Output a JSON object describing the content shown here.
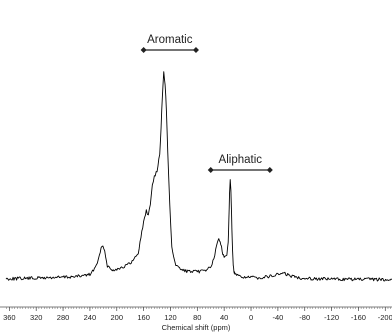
{
  "chart_data": {
    "type": "line",
    "title": "",
    "xlabel": "Chemical shift (ppm)",
    "ylabel": "",
    "x_reversed": true,
    "xlim": [
      365,
      -210
    ],
    "x_ticks": [
      360,
      320,
      280,
      240,
      200,
      160,
      120,
      80,
      40,
      0,
      -40,
      -80,
      -120,
      -160,
      -200
    ],
    "ylim": [
      0,
      1
    ],
    "grid": false,
    "legend": "none",
    "annotations": [
      {
        "text": "Aromatic",
        "x_start": 160,
        "x_end": 82
      },
      {
        "text": "Aliphatic",
        "x_start": 60,
        "x_end": -28
      }
    ],
    "series": [
      {
        "color": "#000000",
        "x": [
          365,
          340,
          300,
          260,
          240,
          232,
          226,
          222,
          218,
          214,
          208,
          200,
          190,
          180,
          174,
          168,
          164,
          160,
          156,
          153,
          150,
          147,
          144,
          140,
          136,
          134,
          132,
          130,
          128,
          126,
          124,
          121,
          118,
          115,
          112,
          108,
          104,
          100,
          90,
          80,
          70,
          62,
          58,
          54,
          50,
          48,
          46,
          44,
          42,
          40,
          38,
          36,
          34,
          33,
          32,
          31,
          30,
          29,
          28,
          27,
          26,
          25,
          24,
          20,
          14,
          8,
          0,
          -10,
          -20,
          -30,
          -40,
          -46,
          -52,
          -60,
          -75,
          -100,
          -140,
          -180,
          -210
        ],
        "values": [
          0.01,
          0.012,
          0.015,
          0.02,
          0.03,
          0.06,
          0.11,
          0.165,
          0.14,
          0.07,
          0.05,
          0.055,
          0.065,
          0.08,
          0.1,
          0.13,
          0.2,
          0.27,
          0.32,
          0.3,
          0.35,
          0.44,
          0.48,
          0.5,
          0.58,
          0.7,
          0.85,
          0.955,
          0.9,
          0.78,
          0.58,
          0.34,
          0.16,
          0.1,
          0.075,
          0.06,
          0.052,
          0.048,
          0.042,
          0.042,
          0.048,
          0.06,
          0.075,
          0.12,
          0.175,
          0.19,
          0.18,
          0.16,
          0.12,
          0.11,
          0.115,
          0.125,
          0.18,
          0.28,
          0.4,
          0.47,
          0.42,
          0.3,
          0.18,
          0.1,
          0.055,
          0.04,
          0.03,
          0.024,
          0.02,
          0.018,
          0.016,
          0.015,
          0.018,
          0.022,
          0.03,
          0.035,
          0.032,
          0.022,
          0.014,
          0.01,
          0.008,
          0.007,
          0.007
        ]
      }
    ]
  }
}
